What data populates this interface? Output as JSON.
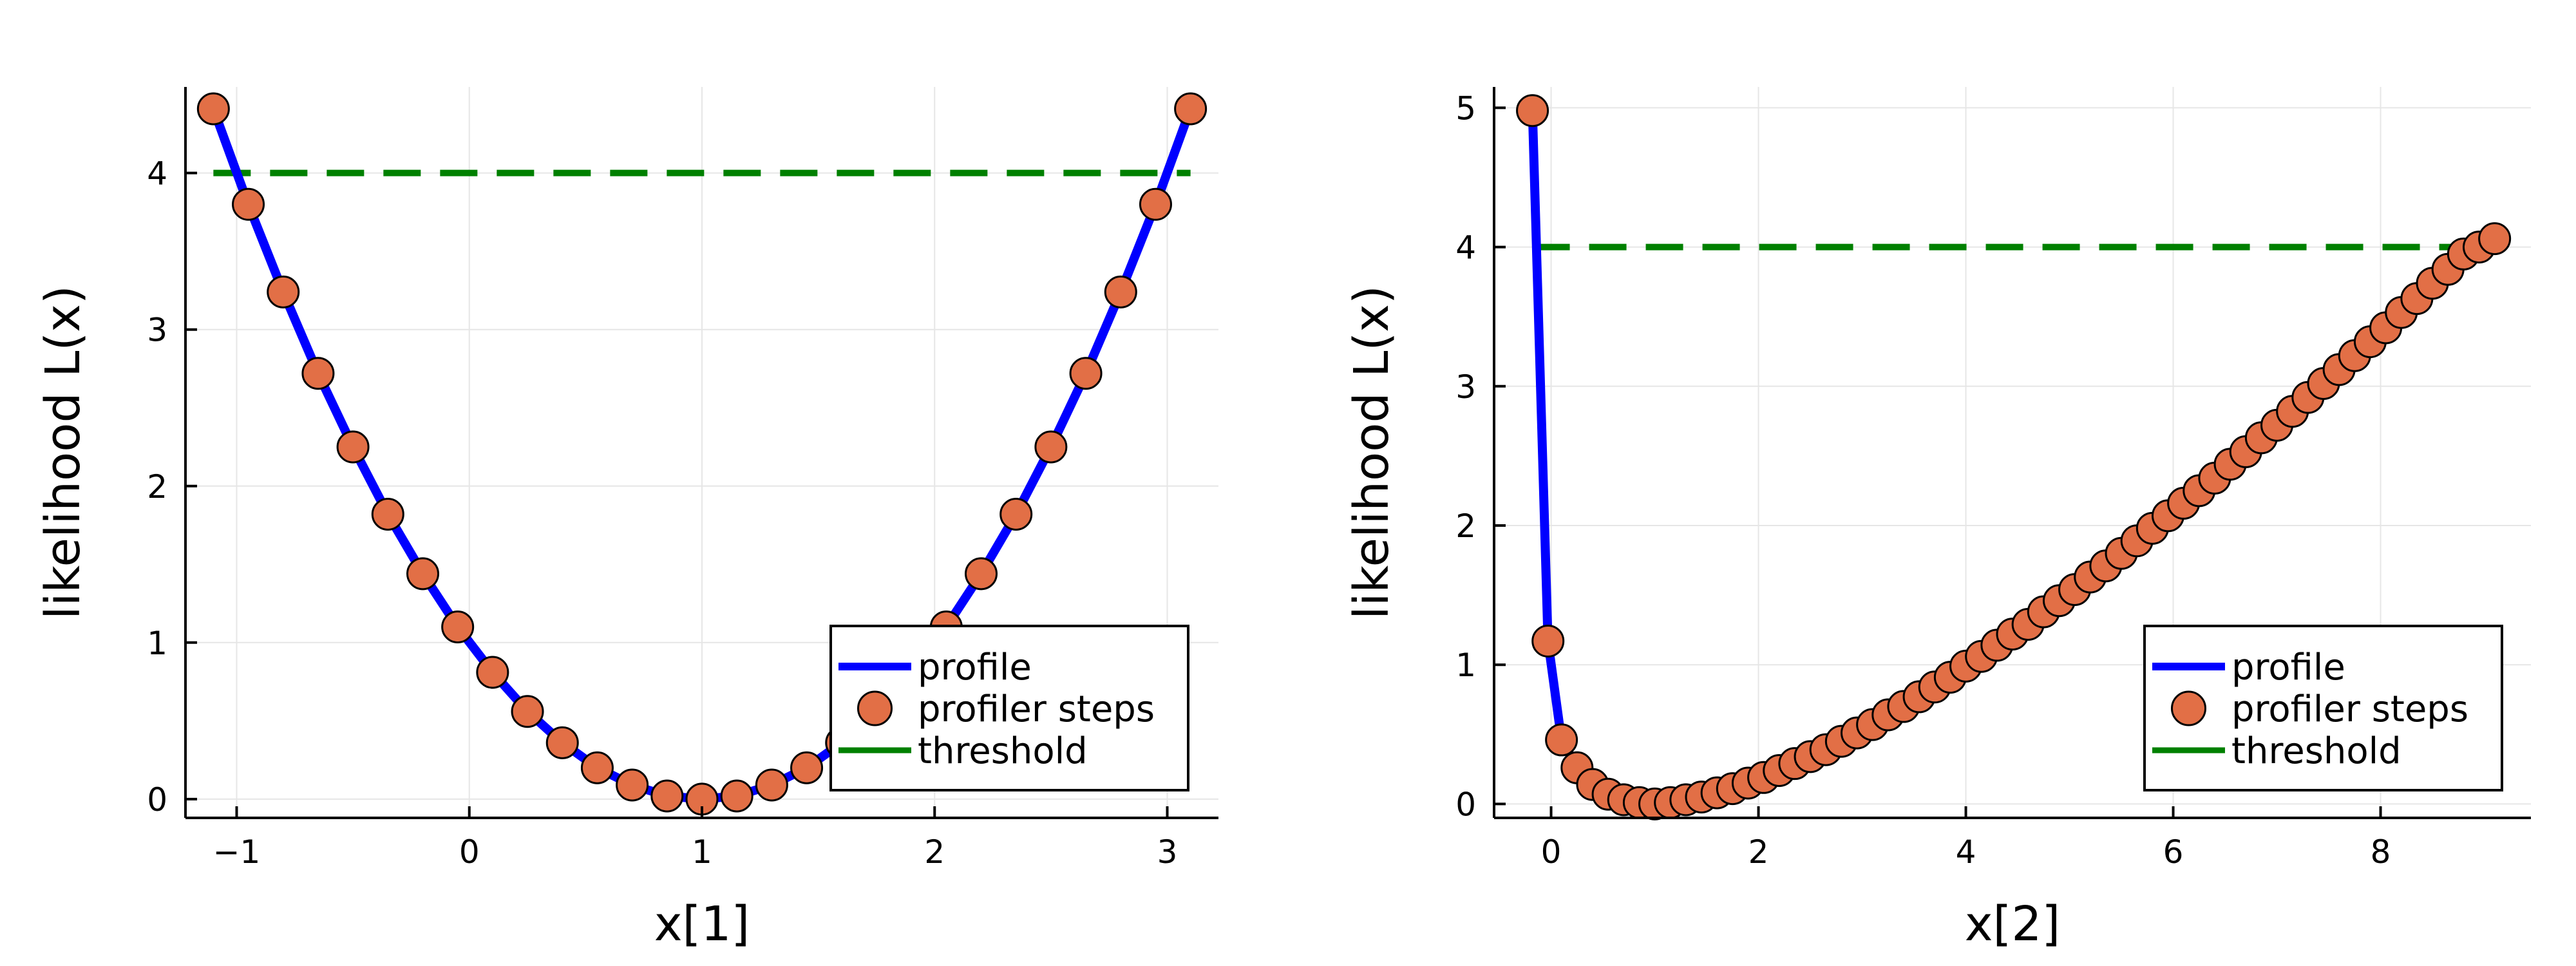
{
  "chart_data": [
    {
      "type": "line",
      "title": "",
      "xlabel": "x[1]",
      "ylabel": "likelihood L(x)",
      "xlim": [
        -1.22,
        3.22
      ],
      "ylim": [
        -0.12,
        4.55
      ],
      "xticks": [
        -1,
        0,
        1,
        2,
        3
      ],
      "yticks": [
        0,
        1,
        2,
        3,
        4
      ],
      "xtick_labels": [
        "−1",
        "0",
        "1",
        "2",
        "3"
      ],
      "ytick_labels": [
        "0",
        "1",
        "2",
        "3",
        "4"
      ],
      "grid": true,
      "legend_position": "bottom-right",
      "series": [
        {
          "name": "profile",
          "kind": "line",
          "color": "#0000ff",
          "x": [
            -1.1,
            -0.95,
            -0.8,
            -0.65,
            -0.5,
            -0.35,
            -0.2,
            -0.05,
            0.1,
            0.25,
            0.4,
            0.55,
            0.7,
            0.85,
            1.0,
            1.15,
            1.3,
            1.45,
            1.6,
            1.75,
            1.9,
            2.05,
            2.2,
            2.35,
            2.5,
            2.65,
            2.8,
            2.95,
            3.1
          ],
          "y": [
            4.41,
            3.8,
            3.24,
            2.72,
            2.25,
            1.82,
            1.44,
            1.1,
            0.81,
            0.56,
            0.36,
            0.2,
            0.09,
            0.02,
            0.0,
            0.02,
            0.09,
            0.2,
            0.36,
            0.56,
            0.81,
            1.1,
            1.44,
            1.82,
            2.25,
            2.72,
            3.24,
            3.8,
            4.41
          ]
        },
        {
          "name": "profiler steps",
          "kind": "scatter",
          "color": "#e26f46",
          "x": [
            -1.1,
            -0.95,
            -0.8,
            -0.65,
            -0.5,
            -0.35,
            -0.2,
            -0.05,
            0.1,
            0.25,
            0.4,
            0.55,
            0.7,
            0.85,
            1.0,
            1.15,
            1.3,
            1.45,
            1.6,
            1.75,
            1.9,
            2.05,
            2.2,
            2.35,
            2.5,
            2.65,
            2.8,
            2.95,
            3.1
          ],
          "y": [
            4.41,
            3.8,
            3.24,
            2.72,
            2.25,
            1.82,
            1.44,
            1.1,
            0.81,
            0.56,
            0.36,
            0.2,
            0.09,
            0.02,
            0.0,
            0.02,
            0.09,
            0.2,
            0.36,
            0.56,
            0.81,
            1.1,
            1.44,
            1.82,
            2.25,
            2.72,
            3.24,
            3.8,
            4.41
          ]
        },
        {
          "name": "threshold",
          "kind": "hline",
          "color": "#008000",
          "y": 4.0,
          "x": [
            -1.1,
            3.1
          ]
        }
      ]
    },
    {
      "type": "line",
      "title": "",
      "xlabel": "x[2]",
      "ylabel": "likelihood L(x)",
      "xlim": [
        -0.55,
        9.45
      ],
      "ylim": [
        -0.1,
        5.15
      ],
      "xticks": [
        0,
        2,
        4,
        6,
        8
      ],
      "yticks": [
        0,
        1,
        2,
        3,
        4,
        5
      ],
      "xtick_labels": [
        "0",
        "2",
        "4",
        "6",
        "8"
      ],
      "ytick_labels": [
        "0",
        "1",
        "2",
        "3",
        "4",
        "5"
      ],
      "grid": true,
      "legend_position": "bottom-right",
      "series": [
        {
          "name": "profile",
          "kind": "line",
          "color": "#0000ff",
          "x": [
            -0.18,
            -0.03,
            0.1,
            0.25,
            0.4,
            0.55,
            0.7,
            0.85,
            1.0,
            1.15,
            1.3,
            1.45,
            1.6,
            1.75,
            1.9,
            2.05,
            2.2,
            2.35,
            2.5,
            2.65,
            2.8,
            2.95,
            3.1,
            3.25,
            3.4,
            3.55,
            3.7,
            3.85,
            4.0,
            4.15,
            4.3,
            4.45,
            4.6,
            4.75,
            4.9,
            5.05,
            5.2,
            5.35,
            5.5,
            5.65,
            5.8,
            5.95,
            6.1,
            6.25,
            6.4,
            6.55,
            6.7,
            6.85,
            7.0,
            7.15,
            7.3,
            7.45,
            7.6,
            7.75,
            7.9,
            8.05,
            8.2,
            8.35,
            8.5,
            8.65,
            8.8,
            8.95,
            9.1
          ],
          "y": [
            4.98,
            1.17,
            0.46,
            0.26,
            0.14,
            0.07,
            0.03,
            0.01,
            0.0,
            0.01,
            0.03,
            0.05,
            0.08,
            0.11,
            0.15,
            0.19,
            0.24,
            0.29,
            0.34,
            0.39,
            0.45,
            0.51,
            0.57,
            0.64,
            0.7,
            0.77,
            0.84,
            0.91,
            0.99,
            1.06,
            1.14,
            1.22,
            1.29,
            1.38,
            1.46,
            1.54,
            1.63,
            1.71,
            1.8,
            1.89,
            1.98,
            2.07,
            2.16,
            2.25,
            2.34,
            2.44,
            2.53,
            2.63,
            2.72,
            2.82,
            2.92,
            3.02,
            3.12,
            3.22,
            3.32,
            3.42,
            3.53,
            3.63,
            3.74,
            3.84,
            3.95,
            4.0,
            4.06
          ]
        },
        {
          "name": "profiler steps",
          "kind": "scatter",
          "color": "#e26f46",
          "x": [
            -0.18,
            -0.03,
            0.1,
            0.25,
            0.4,
            0.55,
            0.7,
            0.85,
            1.0,
            1.15,
            1.3,
            1.45,
            1.6,
            1.75,
            1.9,
            2.05,
            2.2,
            2.35,
            2.5,
            2.65,
            2.8,
            2.95,
            3.1,
            3.25,
            3.4,
            3.55,
            3.7,
            3.85,
            4.0,
            4.15,
            4.3,
            4.45,
            4.6,
            4.75,
            4.9,
            5.05,
            5.2,
            5.35,
            5.5,
            5.65,
            5.8,
            5.95,
            6.1,
            6.25,
            6.4,
            6.55,
            6.7,
            6.85,
            7.0,
            7.15,
            7.3,
            7.45,
            7.6,
            7.75,
            7.9,
            8.05,
            8.2,
            8.35,
            8.5,
            8.65,
            8.8,
            8.95,
            9.1
          ],
          "y": [
            4.98,
            1.17,
            0.46,
            0.26,
            0.14,
            0.07,
            0.03,
            0.01,
            0.0,
            0.01,
            0.03,
            0.05,
            0.08,
            0.11,
            0.15,
            0.19,
            0.24,
            0.29,
            0.34,
            0.39,
            0.45,
            0.51,
            0.57,
            0.64,
            0.7,
            0.77,
            0.84,
            0.91,
            0.99,
            1.06,
            1.14,
            1.22,
            1.29,
            1.38,
            1.46,
            1.54,
            1.63,
            1.71,
            1.8,
            1.89,
            1.98,
            2.07,
            2.16,
            2.25,
            2.34,
            2.44,
            2.53,
            2.63,
            2.72,
            2.82,
            2.92,
            3.02,
            3.12,
            3.22,
            3.32,
            3.42,
            3.53,
            3.63,
            3.74,
            3.84,
            3.95,
            4.0,
            4.06
          ]
        },
        {
          "name": "threshold",
          "kind": "hline",
          "color": "#008000",
          "y": 4.0,
          "x": [
            -0.18,
            9.1
          ]
        }
      ]
    }
  ]
}
